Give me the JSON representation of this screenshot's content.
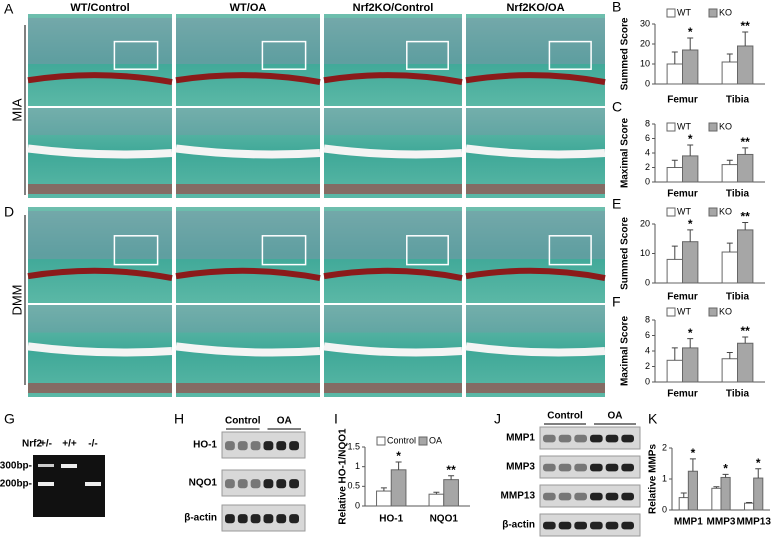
{
  "figure": {
    "panel_letters": [
      "A",
      "B",
      "C",
      "D",
      "E",
      "F",
      "G",
      "H",
      "I",
      "J",
      "K"
    ],
    "columns": [
      "WT/Control",
      "WT/OA",
      "Nrf2KO/Control",
      "Nrf2KO/OA"
    ],
    "rows": [
      "MIA",
      "DMM"
    ],
    "gel": {
      "genotype_label": "Nrf2",
      "lanes": [
        "+/-",
        "+/+",
        "-/-"
      ],
      "markers": [
        "300bp-",
        "200bp-"
      ]
    },
    "blot_h": {
      "groups": [
        "Control",
        "OA"
      ],
      "rows": [
        "HO-1",
        "NQO1",
        "β-actin"
      ]
    },
    "blot_j": {
      "groups": [
        "Control",
        "OA"
      ],
      "rows": [
        "MMP1",
        "MMP3",
        "MMP13",
        "β-actin"
      ]
    }
  },
  "chart_data": [
    {
      "type": "bar",
      "y_label": "Summed Score",
      "categories": [
        "Femur",
        "Tibia"
      ],
      "ylim": [
        0,
        30
      ],
      "yticks": [
        0,
        10,
        20,
        30
      ],
      "series": [
        {
          "name": "WT",
          "color": "#ffffff",
          "values": [
            10,
            11
          ],
          "errors": [
            6,
            4
          ]
        },
        {
          "name": "KO",
          "color": "#a6a6a6",
          "values": [
            17,
            19
          ],
          "errors": [
            6,
            7
          ]
        }
      ],
      "significance": [
        "*",
        "**"
      ]
    },
    {
      "type": "bar",
      "y_label": "Maximal Score",
      "categories": [
        "Femur",
        "Tibia"
      ],
      "ylim": [
        0,
        8
      ],
      "yticks": [
        0,
        2,
        4,
        6,
        8
      ],
      "series": [
        {
          "name": "WT",
          "color": "#ffffff",
          "values": [
            2,
            2.4
          ],
          "errors": [
            1,
            0.6
          ]
        },
        {
          "name": "KO",
          "color": "#a6a6a6",
          "values": [
            3.6,
            3.8
          ],
          "errors": [
            1.5,
            0.9
          ]
        }
      ],
      "significance": [
        "*",
        "**"
      ]
    },
    {
      "type": "bar",
      "y_label": "Summed Score",
      "categories": [
        "Femur",
        "Tibia"
      ],
      "ylim": [
        0,
        20
      ],
      "yticks": [
        0,
        10,
        20
      ],
      "series": [
        {
          "name": "WT",
          "color": "#ffffff",
          "values": [
            8,
            10.5
          ],
          "errors": [
            4.5,
            3
          ]
        },
        {
          "name": "KO",
          "color": "#a6a6a6",
          "values": [
            14,
            18
          ],
          "errors": [
            4,
            2.5
          ]
        }
      ],
      "significance": [
        "*",
        "**"
      ]
    },
    {
      "type": "bar",
      "y_label": "Maximal Score",
      "categories": [
        "Femur",
        "Tibia"
      ],
      "ylim": [
        0,
        8
      ],
      "yticks": [
        0,
        2,
        4,
        6,
        8
      ],
      "series": [
        {
          "name": "WT",
          "color": "#ffffff",
          "values": [
            2.8,
            3
          ],
          "errors": [
            1.6,
            0.8
          ]
        },
        {
          "name": "KO",
          "color": "#a6a6a6",
          "values": [
            4.4,
            5
          ],
          "errors": [
            1.2,
            0.8
          ]
        }
      ],
      "significance": [
        "*",
        "**"
      ]
    },
    {
      "type": "bar",
      "y_label": "Relative HO-1/NQO1",
      "categories": [
        "HO-1",
        "NQO1"
      ],
      "ylim": [
        0,
        1.5
      ],
      "yticks": [
        0,
        0.5,
        1,
        1.5
      ],
      "series": [
        {
          "name": "Control",
          "color": "#ffffff",
          "values": [
            0.38,
            0.3
          ],
          "errors": [
            0.08,
            0.05
          ]
        },
        {
          "name": "OA",
          "color": "#a6a6a6",
          "values": [
            0.92,
            0.67
          ],
          "errors": [
            0.2,
            0.1
          ]
        }
      ],
      "significance": [
        "*",
        "**"
      ]
    },
    {
      "type": "bar",
      "y_label": "Relative MMPs",
      "categories": [
        "MMP1",
        "MMP3",
        "MMP13"
      ],
      "ylim": [
        0,
        2
      ],
      "yticks": [
        0,
        1,
        2
      ],
      "series": [
        {
          "color": "#ffffff",
          "values": [
            0.4,
            0.7,
            0.22
          ],
          "errors": [
            0.15,
            0.05,
            0.02
          ]
        },
        {
          "color": "#a6a6a6",
          "values": [
            1.25,
            1.05,
            1.03
          ],
          "errors": [
            0.4,
            0.1,
            0.3
          ]
        }
      ],
      "significance": [
        "*",
        "*",
        "*"
      ]
    }
  ]
}
